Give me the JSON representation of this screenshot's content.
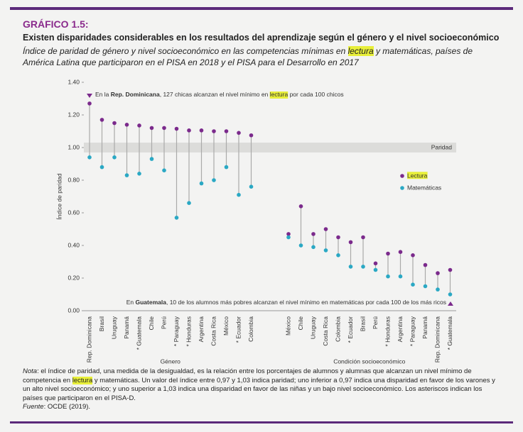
{
  "header": {
    "label": "GRÁFICO 1.5:",
    "title": "Existen disparidades considerables en los resultados del aprendizaje según el género y el nivel socioeconómico",
    "subtitle": [
      "Índice de paridad de género y nivel socioeconómico en las competencias mínimas en ",
      "lectura",
      " y matemáticas, países de América Latina que participaron en el PISA en 2018 y el PISA para el Desarrollo en 2017"
    ]
  },
  "chart_data": {
    "type": "dumbbell",
    "ylabel": "Índice de paridad",
    "ylim": [
      0,
      1.4
    ],
    "yticks": [
      {
        "value": 0,
        "label": "0.00"
      },
      {
        "value": 0.2,
        "label": "0.20"
      },
      {
        "value": 0.4,
        "label": "0.40"
      },
      {
        "value": 0.6,
        "label": "0.60"
      },
      {
        "value": 0.8,
        "label": "0.80"
      },
      {
        "value": 1,
        "label": "1.00"
      },
      {
        "value": 1.2,
        "label": "1.20"
      },
      {
        "value": 1.4,
        "label": "1.40"
      }
    ],
    "parity_band": [
      0.97,
      1.03
    ],
    "parity_label": "Paridad",
    "groups": [
      {
        "name": "Género",
        "categories": [
          "Rep. Dominicana",
          "Brasil",
          "Uruguay",
          "Panamá",
          "* Guatemala",
          "Chile",
          "Perú",
          "* Paraguay",
          "* Honduras",
          "Argentina",
          "Costa Rica",
          "México",
          "* Ecuador",
          "Colombia"
        ]
      },
      {
        "name": "Condición socioeconómico",
        "categories": [
          "México",
          "Chile",
          "Uruguay",
          "Costa Rica",
          "Colombia",
          "* Ecuador",
          "Brasil",
          "Perú",
          "* Honduras",
          "Argentina",
          "* Paraguay",
          "Panamá",
          "Rep. Dominicana",
          "* Guatemala"
        ]
      }
    ],
    "series": [
      {
        "name": "Lectura",
        "color": "#7b2a8c",
        "values": [
          [
            1.27,
            1.17,
            1.15,
            1.14,
            1.135,
            1.12,
            1.12,
            1.115,
            1.105,
            1.105,
            1.1,
            1.1,
            1.09,
            1.075
          ],
          [
            0.47,
            0.64,
            0.47,
            0.5,
            0.45,
            0.42,
            0.45,
            0.29,
            0.35,
            0.36,
            0.34,
            0.28,
            0.23,
            0.25
          ]
        ]
      },
      {
        "name": "Matemáticas",
        "color": "#2aa8c4",
        "values": [
          [
            0.94,
            0.88,
            0.94,
            0.83,
            0.84,
            0.93,
            0.86,
            0.57,
            0.66,
            0.78,
            0.8,
            0.88,
            0.71,
            0.76
          ],
          [
            0.45,
            0.4,
            0.39,
            0.37,
            0.34,
            0.27,
            0.27,
            0.25,
            0.21,
            0.21,
            0.16,
            0.15,
            0.13,
            0.1
          ]
        ]
      }
    ],
    "annotation_top": [
      "En la ",
      "Rep. Dominicana",
      ", 127 chicas alcanzan el nivel mínimo en ",
      "lectura",
      " por cada 100 chicos"
    ],
    "annotation_bottom": [
      "En ",
      "Guatemala",
      ", 10 de los alumnos más pobres alcanzan el nivel mínimo en matemáticas por cada 100 de los más ricos"
    ]
  },
  "note": {
    "text": [
      "Nota",
      ": el índice de paridad, una medida de la desigualdad, es la relación entre los porcentajes de alumnos y alumnas que alcanzan un nivel mínimo de competencia en ",
      "lectura",
      " y matemáticas. Un valor del índice entre 0,97 y 1,03 indica paridad; uno inferior a 0,97 indica una disparidad en favor de los varones y un alto nivel socioeconómico; y uno superior a 1,03 indica una disparidad en favor de las niñas y un bajo nivel socioeconómico. Los asteriscos indican los países que participaron en el PISA-D."
    ],
    "source": [
      "Fuente",
      ": OCDE (2019)."
    ]
  }
}
